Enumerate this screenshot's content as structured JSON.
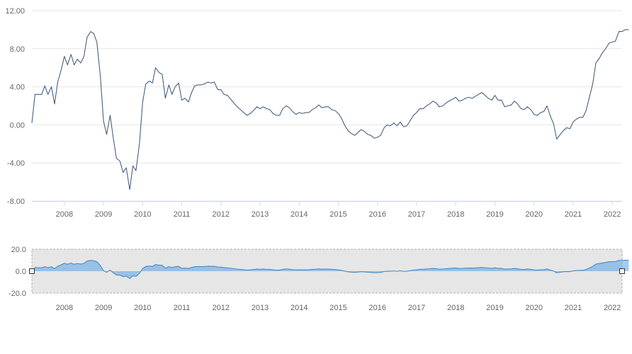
{
  "chart_data": {
    "type": "line",
    "title": "",
    "xlabel": "",
    "ylabel": "",
    "x_range": [
      2007.17,
      2022.25
    ],
    "ylim": [
      -8,
      12
    ],
    "y_ticks": [
      "12.00",
      "8.00",
      "4.00",
      "0.00",
      "-4.00",
      "-8.00"
    ],
    "y_tick_values": [
      12,
      8,
      4,
      0,
      -4,
      -8
    ],
    "x_ticks": [
      "2008",
      "2009",
      "2010",
      "2011",
      "2012",
      "2013",
      "2014",
      "2015",
      "2016",
      "2017",
      "2018",
      "2019",
      "2020",
      "2021",
      "2022"
    ],
    "x_tick_values": [
      2008,
      2009,
      2010,
      2011,
      2012,
      2013,
      2014,
      2015,
      2016,
      2017,
      2018,
      2019,
      2020,
      2021,
      2022
    ],
    "grid": true,
    "line_color": "#4a5f7e",
    "series": [
      {
        "points": [
          [
            2007.17,
            0.2
          ],
          [
            2007.25,
            3.2
          ],
          [
            2007.42,
            3.2
          ],
          [
            2007.5,
            4.1
          ],
          [
            2007.58,
            3.2
          ],
          [
            2007.67,
            4.0
          ],
          [
            2007.75,
            2.2
          ],
          [
            2007.83,
            4.5
          ],
          [
            2007.92,
            5.8
          ],
          [
            2008.0,
            7.2
          ],
          [
            2008.08,
            6.3
          ],
          [
            2008.17,
            7.4
          ],
          [
            2008.25,
            6.3
          ],
          [
            2008.33,
            6.9
          ],
          [
            2008.42,
            6.5
          ],
          [
            2008.5,
            7.2
          ],
          [
            2008.58,
            9.2
          ],
          [
            2008.67,
            9.8
          ],
          [
            2008.75,
            9.6
          ],
          [
            2008.83,
            8.7
          ],
          [
            2008.92,
            5.1
          ],
          [
            2009.0,
            0.4
          ],
          [
            2009.08,
            -1.0
          ],
          [
            2009.17,
            1.0
          ],
          [
            2009.25,
            -1.4
          ],
          [
            2009.33,
            -3.5
          ],
          [
            2009.42,
            -3.8
          ],
          [
            2009.5,
            -5.0
          ],
          [
            2009.58,
            -4.5
          ],
          [
            2009.67,
            -6.8
          ],
          [
            2009.75,
            -4.3
          ],
          [
            2009.83,
            -4.8
          ],
          [
            2009.92,
            -1.9
          ],
          [
            2010.0,
            2.4
          ],
          [
            2010.08,
            4.3
          ],
          [
            2010.17,
            4.6
          ],
          [
            2010.25,
            4.4
          ],
          [
            2010.33,
            6.0
          ],
          [
            2010.42,
            5.5
          ],
          [
            2010.5,
            5.3
          ],
          [
            2010.58,
            2.8
          ],
          [
            2010.67,
            4.2
          ],
          [
            2010.75,
            3.2
          ],
          [
            2010.83,
            4.0
          ],
          [
            2010.92,
            4.4
          ],
          [
            2011.0,
            2.6
          ],
          [
            2011.08,
            2.8
          ],
          [
            2011.17,
            2.4
          ],
          [
            2011.25,
            3.4
          ],
          [
            2011.33,
            4.1
          ],
          [
            2011.42,
            4.2
          ],
          [
            2011.5,
            4.2
          ],
          [
            2011.58,
            4.3
          ],
          [
            2011.67,
            4.5
          ],
          [
            2011.75,
            4.4
          ],
          [
            2011.83,
            4.5
          ],
          [
            2011.92,
            3.7
          ],
          [
            2012.0,
            3.7
          ],
          [
            2012.08,
            3.2
          ],
          [
            2012.17,
            3.1
          ],
          [
            2012.25,
            2.7
          ],
          [
            2012.33,
            2.3
          ],
          [
            2012.42,
            1.9
          ],
          [
            2012.5,
            1.6
          ],
          [
            2012.58,
            1.3
          ],
          [
            2012.67,
            1.0
          ],
          [
            2012.75,
            1.2
          ],
          [
            2012.83,
            1.5
          ],
          [
            2012.92,
            1.9
          ],
          [
            2013.0,
            1.7
          ],
          [
            2013.08,
            1.9
          ],
          [
            2013.17,
            1.7
          ],
          [
            2013.25,
            1.6
          ],
          [
            2013.33,
            1.2
          ],
          [
            2013.42,
            1.0
          ],
          [
            2013.5,
            1.0
          ],
          [
            2013.58,
            1.7
          ],
          [
            2013.67,
            2.0
          ],
          [
            2013.75,
            1.8
          ],
          [
            2013.83,
            1.4
          ],
          [
            2013.92,
            1.1
          ],
          [
            2014.0,
            1.3
          ],
          [
            2014.08,
            1.2
          ],
          [
            2014.17,
            1.3
          ],
          [
            2014.25,
            1.3
          ],
          [
            2014.33,
            1.6
          ],
          [
            2014.42,
            1.8
          ],
          [
            2014.5,
            2.1
          ],
          [
            2014.58,
            1.8
          ],
          [
            2014.67,
            1.9
          ],
          [
            2014.75,
            1.9
          ],
          [
            2014.83,
            1.6
          ],
          [
            2014.92,
            1.5
          ],
          [
            2015.0,
            1.2
          ],
          [
            2015.08,
            0.7
          ],
          [
            2015.17,
            -0.1
          ],
          [
            2015.25,
            -0.6
          ],
          [
            2015.33,
            -0.9
          ],
          [
            2015.42,
            -1.1
          ],
          [
            2015.5,
            -0.8
          ],
          [
            2015.58,
            -0.5
          ],
          [
            2015.67,
            -0.7
          ],
          [
            2015.75,
            -1.0
          ],
          [
            2015.83,
            -1.1
          ],
          [
            2015.92,
            -1.4
          ],
          [
            2016.0,
            -1.3
          ],
          [
            2016.08,
            -1.1
          ],
          [
            2016.17,
            -0.3
          ],
          [
            2016.25,
            0.0
          ],
          [
            2016.33,
            -0.1
          ],
          [
            2016.42,
            0.2
          ],
          [
            2016.5,
            -0.1
          ],
          [
            2016.58,
            0.3
          ],
          [
            2016.67,
            -0.2
          ],
          [
            2016.75,
            -0.1
          ],
          [
            2016.83,
            0.4
          ],
          [
            2016.92,
            1.0
          ],
          [
            2017.0,
            1.3
          ],
          [
            2017.08,
            1.7
          ],
          [
            2017.17,
            1.7
          ],
          [
            2017.25,
            2.0
          ],
          [
            2017.33,
            2.2
          ],
          [
            2017.42,
            2.5
          ],
          [
            2017.5,
            2.3
          ],
          [
            2017.58,
            1.9
          ],
          [
            2017.67,
            2.0
          ],
          [
            2017.75,
            2.3
          ],
          [
            2017.83,
            2.5
          ],
          [
            2017.92,
            2.7
          ],
          [
            2018.0,
            2.9
          ],
          [
            2018.08,
            2.5
          ],
          [
            2018.17,
            2.6
          ],
          [
            2018.25,
            2.8
          ],
          [
            2018.33,
            2.9
          ],
          [
            2018.42,
            2.8
          ],
          [
            2018.5,
            3.0
          ],
          [
            2018.58,
            3.2
          ],
          [
            2018.67,
            3.4
          ],
          [
            2018.75,
            3.1
          ],
          [
            2018.83,
            2.8
          ],
          [
            2018.92,
            2.6
          ],
          [
            2019.0,
            3.1
          ],
          [
            2019.08,
            2.6
          ],
          [
            2019.17,
            2.6
          ],
          [
            2019.25,
            1.9
          ],
          [
            2019.33,
            2.0
          ],
          [
            2019.42,
            2.1
          ],
          [
            2019.5,
            2.5
          ],
          [
            2019.58,
            2.2
          ],
          [
            2019.67,
            1.7
          ],
          [
            2019.75,
            1.6
          ],
          [
            2019.83,
            1.9
          ],
          [
            2019.92,
            1.6
          ],
          [
            2020.0,
            1.1
          ],
          [
            2020.08,
            1.0
          ],
          [
            2020.17,
            1.3
          ],
          [
            2020.25,
            1.4
          ],
          [
            2020.33,
            2.0
          ],
          [
            2020.42,
            0.9
          ],
          [
            2020.5,
            0.1
          ],
          [
            2020.58,
            -1.5
          ],
          [
            2020.67,
            -1.0
          ],
          [
            2020.75,
            -0.6
          ],
          [
            2020.83,
            -0.3
          ],
          [
            2020.92,
            -0.4
          ],
          [
            2021.0,
            0.3
          ],
          [
            2021.08,
            0.6
          ],
          [
            2021.17,
            0.8
          ],
          [
            2021.25,
            0.8
          ],
          [
            2021.33,
            1.5
          ],
          [
            2021.42,
            3.0
          ],
          [
            2021.5,
            4.3
          ],
          [
            2021.58,
            6.5
          ],
          [
            2021.67,
            7.0
          ],
          [
            2021.75,
            7.6
          ],
          [
            2021.83,
            8.0
          ],
          [
            2021.92,
            8.6
          ],
          [
            2022.0,
            8.7
          ],
          [
            2022.08,
            8.8
          ],
          [
            2022.17,
            9.8
          ],
          [
            2022.25,
            9.8
          ],
          [
            2022.33,
            10.0
          ],
          [
            2022.42,
            10.0
          ]
        ]
      }
    ],
    "navigator": {
      "ylim": [
        -20,
        20
      ],
      "y_ticks": [
        "20.0",
        "0.0",
        "-20.0"
      ],
      "y_tick_values": [
        20,
        0,
        -20
      ],
      "fill_color": "#5aa1e3",
      "line_color": "#3d85c6",
      "selection_color": "#e6e6e6"
    }
  }
}
